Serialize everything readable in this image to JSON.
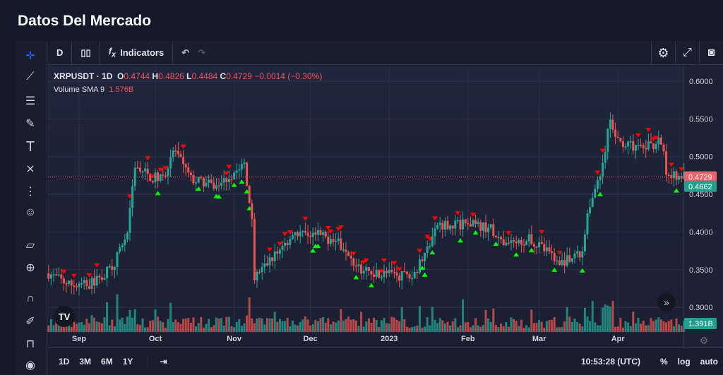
{
  "title": "Datos Del Mercado",
  "toolbar": {
    "interval": "D",
    "indicators": "Indicators"
  },
  "legend": {
    "symbol": "XRPUSDT",
    "interval": "1D",
    "o_label": "O",
    "o": "0.4744",
    "h_label": "H",
    "h": "0.4826",
    "l_label": "L",
    "l": "0.4484",
    "c_label": "C",
    "c": "0.4729",
    "change": "−0.0014 (−0.30%)",
    "volume_label": "Volume SMA 9",
    "volume": "1.576B"
  },
  "price_axis": {
    "ticks": [
      "0.6000",
      "0.5500",
      "0.5000",
      "0.4500",
      "0.4000",
      "0.3500",
      "0.3000"
    ],
    "last_price": "0.4729",
    "sma_price": "0.4662",
    "volume_badge": "1.391B"
  },
  "time_axis": {
    "ticks": [
      "Sep",
      "Oct",
      "Nov",
      "Dec",
      "2023",
      "Feb",
      "Mar",
      "Apr"
    ]
  },
  "bottom": {
    "ranges": [
      "1D",
      "3M",
      "6M",
      "1Y"
    ],
    "clock": "10:53:28 (UTC)",
    "percent": "%",
    "log": "log",
    "auto": "auto"
  },
  "colors": {
    "up": "#26a69a",
    "down": "#ef5350",
    "buy_signal": "#00ff00",
    "sell_signal": "#ff0000"
  },
  "chart_data": {
    "type": "candlestick",
    "approx_closes": [
      [
        "2022-08-20",
        0.345
      ],
      [
        "2022-08-28",
        0.33
      ],
      [
        "2022-09-05",
        0.33
      ],
      [
        "2022-09-10",
        0.34
      ],
      [
        "2022-09-15",
        0.36
      ],
      [
        "2022-09-20",
        0.4
      ],
      [
        "2022-09-23",
        0.49
      ],
      [
        "2022-09-30",
        0.47
      ],
      [
        "2022-10-05",
        0.48
      ],
      [
        "2022-10-08",
        0.51
      ],
      [
        "2022-10-15",
        0.47
      ],
      [
        "2022-10-25",
        0.46
      ],
      [
        "2022-11-05",
        0.49
      ],
      [
        "2022-11-08",
        0.42
      ],
      [
        "2022-11-09",
        0.34
      ],
      [
        "2022-11-20",
        0.38
      ],
      [
        "2022-11-25",
        0.4
      ],
      [
        "2022-12-05",
        0.395
      ],
      [
        "2022-12-15",
        0.38
      ],
      [
        "2022-12-20",
        0.35
      ],
      [
        "2023-01-10",
        0.34
      ],
      [
        "2023-01-15",
        0.37
      ],
      [
        "2023-01-20",
        0.41
      ],
      [
        "2023-02-01",
        0.41
      ],
      [
        "2023-02-10",
        0.405
      ],
      [
        "2023-02-15",
        0.38
      ],
      [
        "2023-02-25",
        0.39
      ],
      [
        "2023-03-10",
        0.36
      ],
      [
        "2023-03-18",
        0.37
      ],
      [
        "2023-03-20",
        0.43
      ],
      [
        "2023-03-25",
        0.47
      ],
      [
        "2023-03-29",
        0.55
      ],
      [
        "2023-04-01",
        0.52
      ],
      [
        "2023-04-10",
        0.51
      ],
      [
        "2023-04-18",
        0.52
      ],
      [
        "2023-04-20",
        0.48
      ],
      [
        "2023-04-27",
        0.4729
      ]
    ],
    "ylim": [
      0.28,
      0.62
    ]
  }
}
